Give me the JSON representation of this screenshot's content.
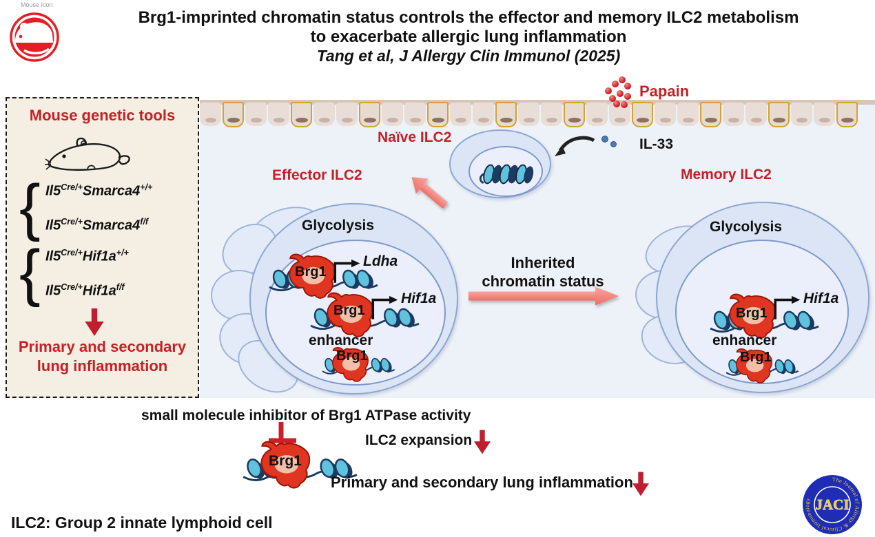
{
  "header": {
    "icon_label": "Mouse Icon",
    "title_line1": "Brg1-imprinted chromatin status controls the effector and memory ILC2 metabolism",
    "title_line2": "to exacerbate allergic lung inflammation",
    "title_line3": "Tang et al, J Allergy Clin Immunol (2025)"
  },
  "left_panel": {
    "title": "Mouse genetic tools",
    "brace": "{",
    "groups": [
      {
        "lines": [
          {
            "gene_a": "Il5",
            "sup_a": "Cre/+",
            "gene_b": "Smarca4",
            "sup_b": "+/+"
          },
          {
            "gene_a": "Il5",
            "sup_a": "Cre/+",
            "gene_b": "Smarca4",
            "sup_b": "f/f"
          }
        ]
      },
      {
        "lines": [
          {
            "gene_a": "Il5",
            "sup_a": "Cre/+",
            "gene_b": "Hif1a",
            "sup_b": "+/+"
          },
          {
            "gene_a": "Il5",
            "sup_a": "Cre/+",
            "gene_b": "Hif1a",
            "sup_b": "f/f"
          }
        ]
      }
    ],
    "outcome_line1": "Primary and secondary",
    "outcome_line2": "lung inflammation"
  },
  "diagram": {
    "epithelium": {
      "cell_count": 29,
      "gold_interval": 3
    },
    "papain_label": "Papain",
    "il33_label": "IL-33",
    "naive_label": "Naïve ILC2",
    "effector_label": "Effector ILC2",
    "memory_label": "Memory ILC2",
    "glycolysis_label": "Glycolysis",
    "inherited_line1": "Inherited",
    "inherited_line2": "chromatin status",
    "brg1_label": "Brg1",
    "ldha_label": "Ldha",
    "hif1a_label": "Hif1a",
    "enhancer_label": "enhancer"
  },
  "bottom": {
    "inhibitor_text": "small molecule inhibitor of Brg1 ATPase activity",
    "expansion_text": "ILC2 expansion",
    "inflammation_text": "Primary and secondary lung inflammation",
    "footnote": "ILC2: Group 2 innate lymphoid cell"
  },
  "logo": {
    "center": "JACI",
    "ring_text": "The Journal of Allergy & Clinical Immunology"
  },
  "colors": {
    "accent_red": "#c42127",
    "blob_red": "#e03520",
    "chromatin_cyan": "#5fc3de",
    "chromatin_navy": "#1c3a60",
    "cell_fill": "#dbe5f5",
    "panel_bg": "#f4efe2",
    "main_bg": "#edf1f8",
    "pink_arrow": "#f2837b",
    "logo_blue": "#1e2db3",
    "logo_yellow": "#ecca45"
  }
}
